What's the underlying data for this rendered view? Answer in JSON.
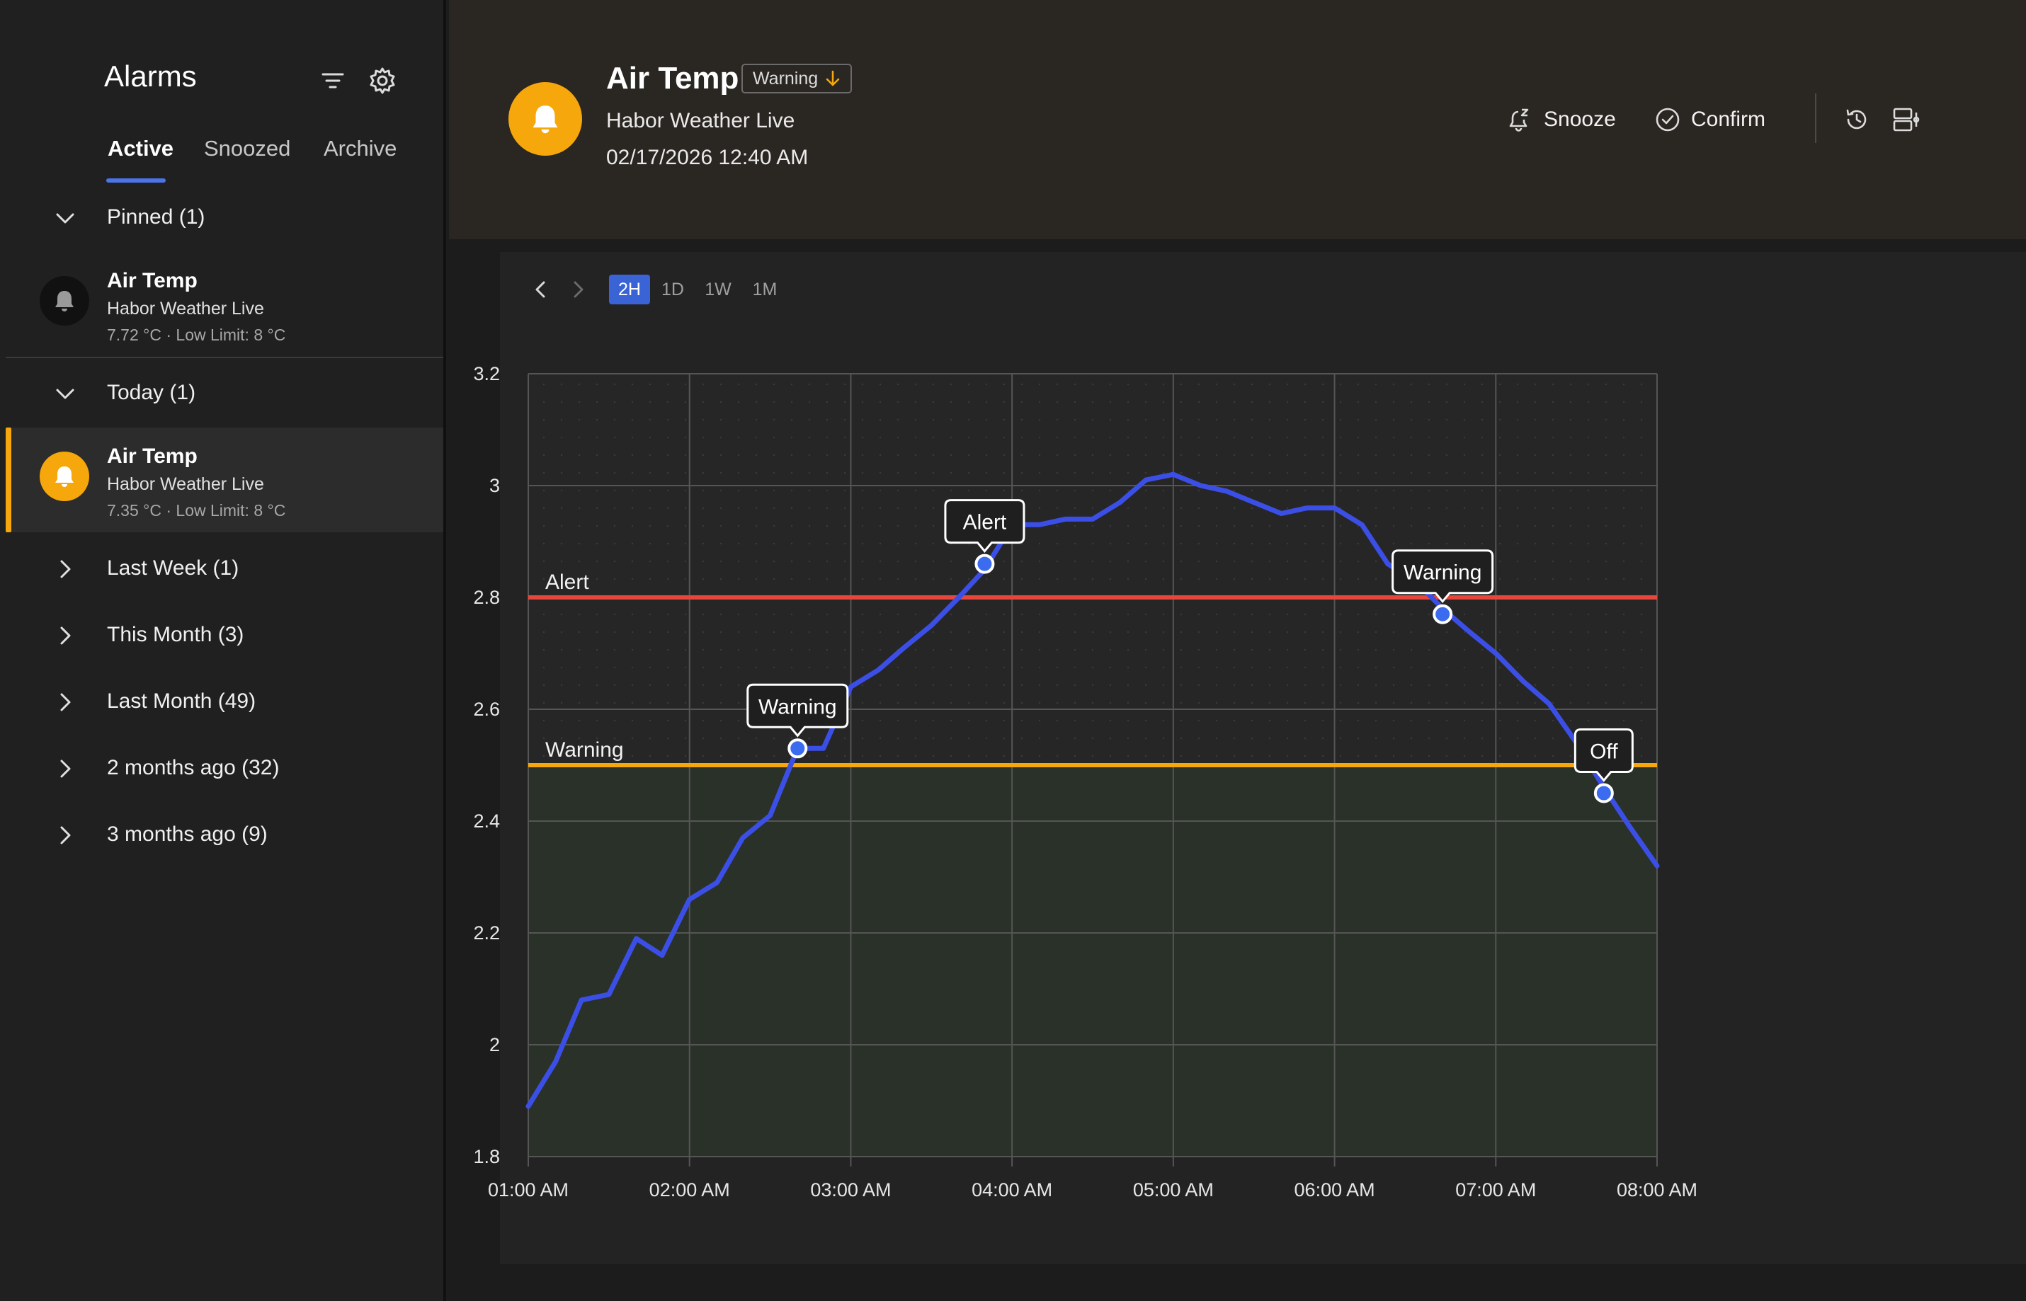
{
  "sidebar": {
    "title": "Alarms",
    "tabs": [
      {
        "label": "Active",
        "active": true
      },
      {
        "label": "Snoozed",
        "active": false
      },
      {
        "label": "Archive",
        "active": false
      }
    ],
    "groups": {
      "pinned": {
        "label": "Pinned (1)",
        "expanded": true
      },
      "today": {
        "label": "Today (1)",
        "expanded": true
      },
      "last_week": {
        "label": "Last Week (1)"
      },
      "this_month": {
        "label": "This Month (3)"
      },
      "last_month": {
        "label": "Last Month (49)"
      },
      "two_months": {
        "label": "2 months ago (32)"
      },
      "three_months": {
        "label": "3 months ago (9)"
      }
    },
    "pinned_item": {
      "title": "Air Temp",
      "source": "Habor Weather Live",
      "detail": "7.72 °C · Low Limit: 8 °C",
      "icon": "bell-icon",
      "icon_color": "#111111"
    },
    "today_item": {
      "title": "Air Temp",
      "source": "Habor Weather Live",
      "detail": "7.35 °C · Low Limit: 8 °C",
      "icon": "bell-icon",
      "icon_color": "#f5a70c"
    }
  },
  "header": {
    "title": "Air Temp",
    "badge": "Warning",
    "source": "Habor Weather Live",
    "datetime": "02/17/2026 12:40 AM",
    "snooze_label": "Snooze",
    "confirm_label": "Confirm",
    "accent": "#f5a70c"
  },
  "range_buttons": [
    "2H",
    "1D",
    "1W",
    "1M"
  ],
  "range_selected": "2H",
  "chart_data": {
    "type": "line",
    "x_ticks": [
      "01:00 AM",
      "02:00 AM",
      "03:00 AM",
      "04:00 AM",
      "05:00 AM",
      "06:00 AM",
      "07:00 AM",
      "08:00 AM"
    ],
    "ylim": [
      1.8,
      3.2
    ],
    "y_ticks": [
      "3.2",
      "3",
      "2.8",
      "2.6",
      "2.4",
      "2.2",
      "2",
      "1.8"
    ],
    "grid": true,
    "line_color": "#3b4fe6",
    "series": [
      {
        "x_hours": [
          1.0,
          1.17,
          1.33,
          1.5,
          1.67,
          1.83,
          2.0,
          2.17,
          2.33,
          2.5,
          2.67,
          2.83,
          3.0,
          3.17,
          3.33,
          3.5,
          3.67,
          3.83,
          4.0,
          4.17,
          4.33,
          4.5,
          4.67,
          4.83,
          5.0,
          5.17,
          5.33,
          5.5,
          5.67,
          5.83,
          6.0,
          6.17,
          6.33,
          6.5,
          6.67,
          6.83,
          7.0,
          7.17,
          7.33,
          7.5,
          7.67,
          7.83,
          8.0
        ],
        "values": [
          1.89,
          1.97,
          2.08,
          2.09,
          2.19,
          2.16,
          2.26,
          2.29,
          2.37,
          2.41,
          2.53,
          2.53,
          2.64,
          2.67,
          2.71,
          2.75,
          2.8,
          2.85,
          2.93,
          2.93,
          2.94,
          2.94,
          2.97,
          3.01,
          3.02,
          3.0,
          2.99,
          2.97,
          2.95,
          2.96,
          2.96,
          2.93,
          2.86,
          2.83,
          2.78,
          2.74,
          2.7,
          2.65,
          2.61,
          2.54,
          2.46,
          2.39,
          2.32
        ]
      }
    ],
    "thresholds": [
      {
        "label": "Alert",
        "value": 2.8,
        "color": "#e8463b"
      },
      {
        "label": "Warning",
        "value": 2.5,
        "color": "#f5a70c"
      }
    ],
    "annotations": [
      {
        "label": "Warning",
        "x_hours": 2.67,
        "value": 2.53
      },
      {
        "label": "Alert",
        "x_hours": 3.83,
        "value": 2.86
      },
      {
        "label": "Warning",
        "x_hours": 6.67,
        "value": 2.77
      },
      {
        "label": "Off",
        "x_hours": 7.67,
        "value": 2.45
      }
    ]
  }
}
